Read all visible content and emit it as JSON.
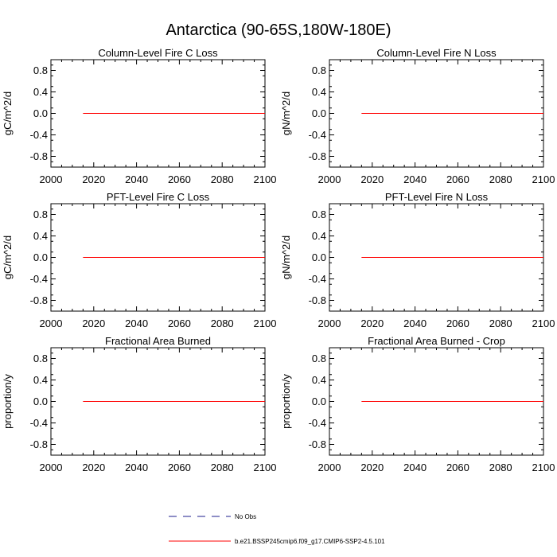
{
  "figure": {
    "title": "Antarctica (90-65S,180W-180E)"
  },
  "legend": [
    {
      "label": "No Obs",
      "color": "#1c1c8c",
      "style": "dashed"
    },
    {
      "label": "b.e21.BSSP245cmip6.f09_g17.CMIP6-SSP2-4.5.101",
      "color": "#ff0000",
      "style": "solid"
    }
  ],
  "chart_data": [
    {
      "type": "line",
      "title": "Column-Level Fire C Loss",
      "xlabel": "",
      "ylabel": "gC/m^2/d",
      "xlim": [
        2000,
        2100
      ],
      "ylim": [
        -1,
        1
      ],
      "xticks": [
        "2000",
        "2020",
        "2040",
        "2060",
        "2080",
        "2100"
      ],
      "yticks": [
        "0.8",
        "0.4",
        "0.0",
        "-0.4",
        "-0.8"
      ],
      "grid": false,
      "series": [
        {
          "name": "b.e21.BSSP245cmip6.f09_g17.CMIP6-SSP2-4.5.101",
          "color": "#ff0000",
          "x": [
            2015,
            2100
          ],
          "y": [
            0.0,
            0.0
          ]
        }
      ]
    },
    {
      "type": "line",
      "title": "Column-Level Fire N Loss",
      "xlabel": "",
      "ylabel": "gN/m^2/d",
      "xlim": [
        2000,
        2100
      ],
      "ylim": [
        -1,
        1
      ],
      "xticks": [
        "2000",
        "2020",
        "2040",
        "2060",
        "2080",
        "2100"
      ],
      "yticks": [
        "0.8",
        "0.4",
        "0.0",
        "-0.4",
        "-0.8"
      ],
      "grid": false,
      "series": [
        {
          "name": "b.e21.BSSP245cmip6.f09_g17.CMIP6-SSP2-4.5.101",
          "color": "#ff0000",
          "x": [
            2015,
            2100
          ],
          "y": [
            0.0,
            0.0
          ]
        }
      ]
    },
    {
      "type": "line",
      "title": "PFT-Level Fire C Loss",
      "xlabel": "",
      "ylabel": "gC/m^2/d",
      "xlim": [
        2000,
        2100
      ],
      "ylim": [
        -1,
        1
      ],
      "xticks": [
        "2000",
        "2020",
        "2040",
        "2060",
        "2080",
        "2100"
      ],
      "yticks": [
        "0.8",
        "0.4",
        "0.0",
        "-0.4",
        "-0.8"
      ],
      "grid": false,
      "series": [
        {
          "name": "b.e21.BSSP245cmip6.f09_g17.CMIP6-SSP2-4.5.101",
          "color": "#ff0000",
          "x": [
            2015,
            2100
          ],
          "y": [
            0.0,
            0.0
          ]
        }
      ]
    },
    {
      "type": "line",
      "title": "PFT-Level Fire N Loss",
      "xlabel": "",
      "ylabel": "gN/m^2/d",
      "xlim": [
        2000,
        2100
      ],
      "ylim": [
        -1,
        1
      ],
      "xticks": [
        "2000",
        "2020",
        "2040",
        "2060",
        "2080",
        "2100"
      ],
      "yticks": [
        "0.8",
        "0.4",
        "0.0",
        "-0.4",
        "-0.8"
      ],
      "grid": false,
      "series": [
        {
          "name": "b.e21.BSSP245cmip6.f09_g17.CMIP6-SSP2-4.5.101",
          "color": "#ff0000",
          "x": [
            2015,
            2100
          ],
          "y": [
            0.0,
            0.0
          ]
        }
      ]
    },
    {
      "type": "line",
      "title": "Fractional Area Burned",
      "xlabel": "",
      "ylabel": "proportion/y",
      "xlim": [
        2000,
        2100
      ],
      "ylim": [
        -1,
        1
      ],
      "xticks": [
        "2000",
        "2020",
        "2040",
        "2060",
        "2080",
        "2100"
      ],
      "yticks": [
        "0.8",
        "0.4",
        "0.0",
        "-0.4",
        "-0.8"
      ],
      "grid": false,
      "series": [
        {
          "name": "b.e21.BSSP245cmip6.f09_g17.CMIP6-SSP2-4.5.101",
          "color": "#ff0000",
          "x": [
            2015,
            2100
          ],
          "y": [
            0.0,
            0.0
          ]
        }
      ]
    },
    {
      "type": "line",
      "title": "Fractional Area Burned - Crop",
      "xlabel": "",
      "ylabel": "proportion/y",
      "xlim": [
        2000,
        2100
      ],
      "ylim": [
        -1,
        1
      ],
      "xticks": [
        "2000",
        "2020",
        "2040",
        "2060",
        "2080",
        "2100"
      ],
      "yticks": [
        "0.8",
        "0.4",
        "0.0",
        "-0.4",
        "-0.8"
      ],
      "grid": false,
      "series": [
        {
          "name": "b.e21.BSSP245cmip6.f09_g17.CMIP6-SSP2-4.5.101",
          "color": "#ff0000",
          "x": [
            2015,
            2100
          ],
          "y": [
            0.0,
            0.0
          ]
        }
      ]
    }
  ]
}
